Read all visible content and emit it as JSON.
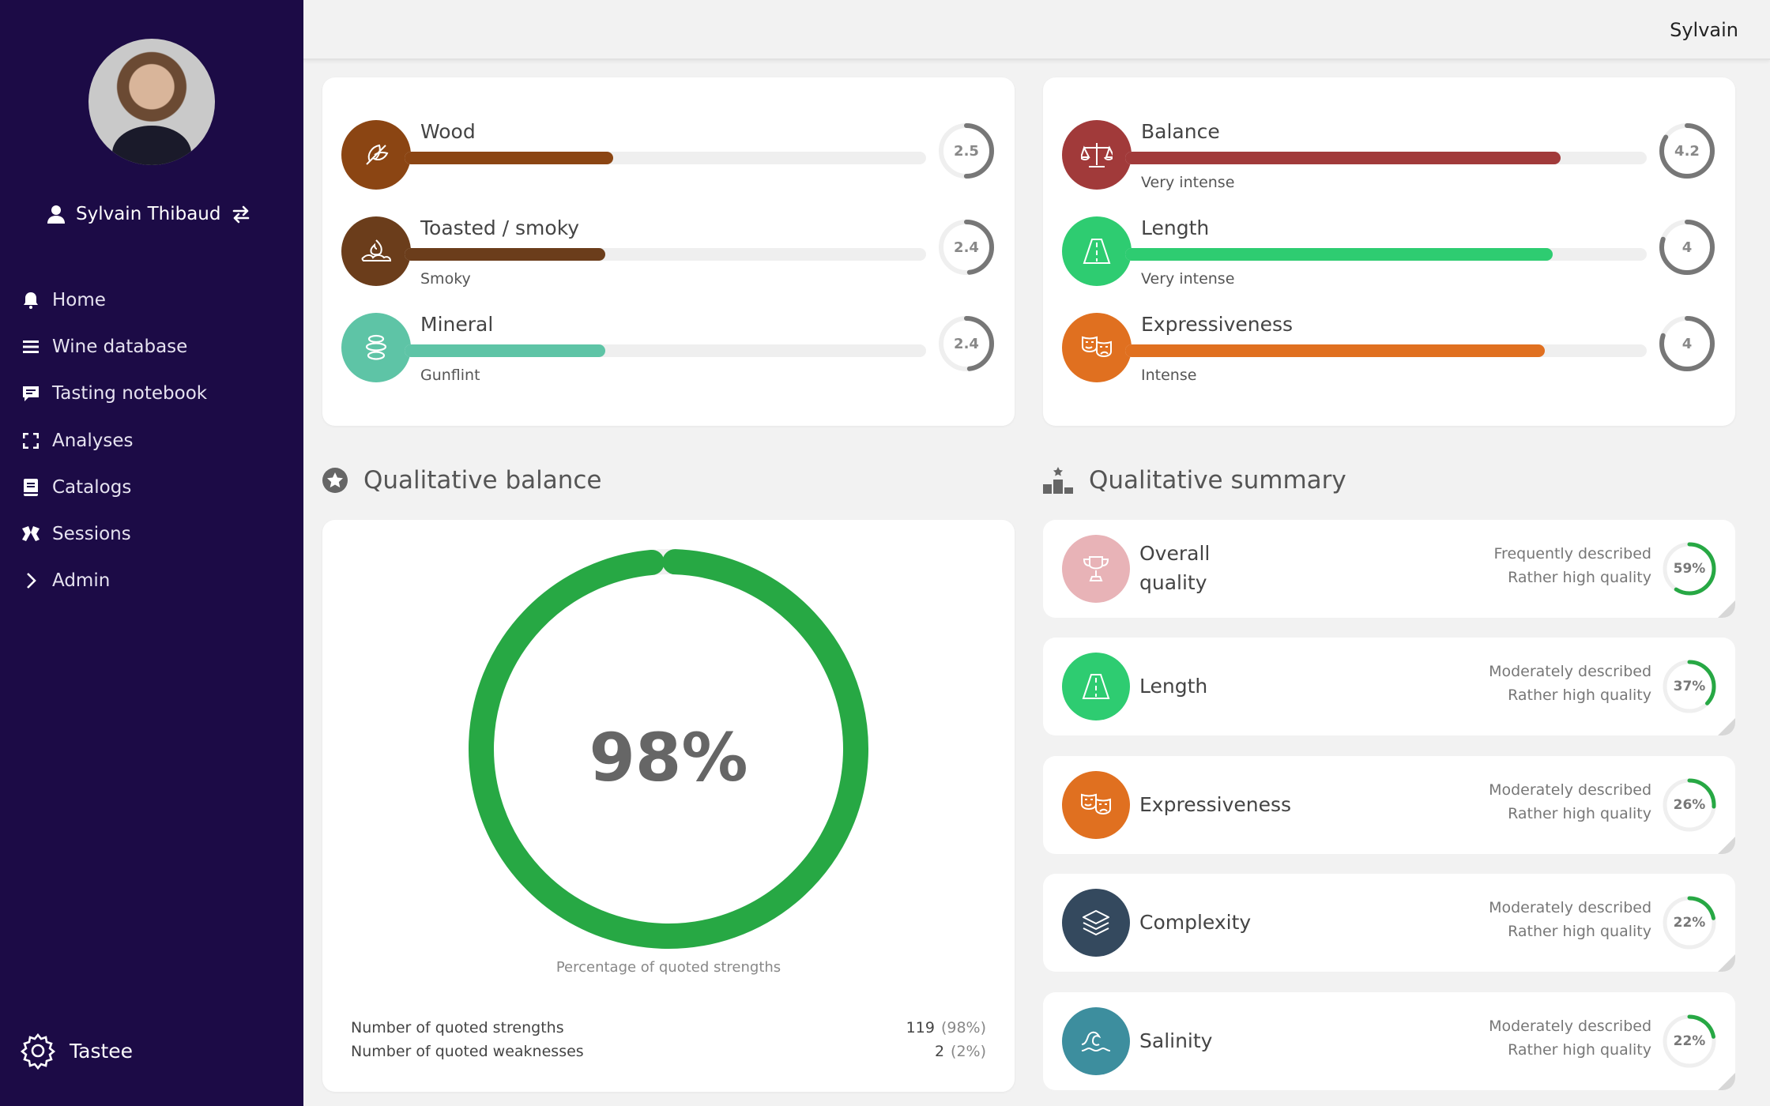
{
  "sidebar": {
    "user_name": "Sylvain Thibaud",
    "nav": [
      {
        "label": "Home",
        "icon": "bell-icon"
      },
      {
        "label": "Wine database",
        "icon": "list-icon"
      },
      {
        "label": "Tasting notebook",
        "icon": "comment-icon"
      },
      {
        "label": "Analyses",
        "icon": "expand-icon"
      },
      {
        "label": "Catalogs",
        "icon": "book-icon"
      },
      {
        "label": "Sessions",
        "icon": "group-icon"
      },
      {
        "label": "Admin",
        "icon": "chevron-right-icon"
      }
    ],
    "brand": "Tastee",
    "bg_color": "#1c0b46"
  },
  "topbar": {
    "user": "Sylvain"
  },
  "aromas": [
    {
      "label": "Wood",
      "sub": "",
      "value": "2.5",
      "fill_pct": 40,
      "color": "#8b4513",
      "icon": "leaf-icon"
    },
    {
      "label": "Toasted / smoky",
      "sub": "Smoky",
      "value": "2.4",
      "fill_pct": 38.5,
      "color": "#6b3d1b",
      "icon": "fire-icon"
    },
    {
      "label": "Mineral",
      "sub": "Gunflint",
      "value": "2.4",
      "fill_pct": 38.5,
      "color": "#5ec4a6",
      "icon": "stones-icon"
    }
  ],
  "structure": [
    {
      "label": "Balance",
      "sub": "Very intense",
      "value": "4.2",
      "fill_pct": 83.5,
      "color": "#a13a3a",
      "icon": "scale-icon"
    },
    {
      "label": "Length",
      "sub": "Very intense",
      "value": "4",
      "fill_pct": 82,
      "color": "#2ecc71",
      "icon": "road-icon"
    },
    {
      "label": "Expressiveness",
      "sub": "Intense",
      "value": "4",
      "fill_pct": 80.5,
      "color": "#e07020",
      "icon": "masks-icon"
    }
  ],
  "balance": {
    "title": "Qualitative balance",
    "percent": "98%",
    "ratio": 0.98,
    "caption": "Percentage of quoted strengths",
    "strengths_label": "Number of quoted strengths",
    "strengths_value": "119",
    "strengths_pct": "(98%)",
    "weaknesses_label": "Number of quoted weaknesses",
    "weaknesses_value": "2",
    "weaknesses_pct": "(2%)",
    "color": "#27a844"
  },
  "summary": {
    "title": "Qualitative summary",
    "items": [
      {
        "name1": "Overall",
        "name2": "quality",
        "freq": "Frequently described",
        "quality": "Rather high quality",
        "pct": "59%",
        "ratio": 0.59,
        "color": "#e8b3b7",
        "icon": "trophy-icon"
      },
      {
        "name1": "Length",
        "name2": "",
        "freq": "Moderately described",
        "quality": "Rather high quality",
        "pct": "37%",
        "ratio": 0.37,
        "color": "#2ecc71",
        "icon": "road-icon"
      },
      {
        "name1": "Expressiveness",
        "name2": "",
        "freq": "Moderately described",
        "quality": "Rather high quality",
        "pct": "26%",
        "ratio": 0.26,
        "color": "#e07020",
        "icon": "masks-icon"
      },
      {
        "name1": "Complexity",
        "name2": "",
        "freq": "Moderately described",
        "quality": "Rather high quality",
        "pct": "22%",
        "ratio": 0.22,
        "color": "#34495e",
        "icon": "layers-icon"
      },
      {
        "name1": "Salinity",
        "name2": "",
        "freq": "Moderately described",
        "quality": "Rather high quality",
        "pct": "22%",
        "ratio": 0.22,
        "color": "#3d8e9e",
        "icon": "wave-icon"
      }
    ]
  }
}
